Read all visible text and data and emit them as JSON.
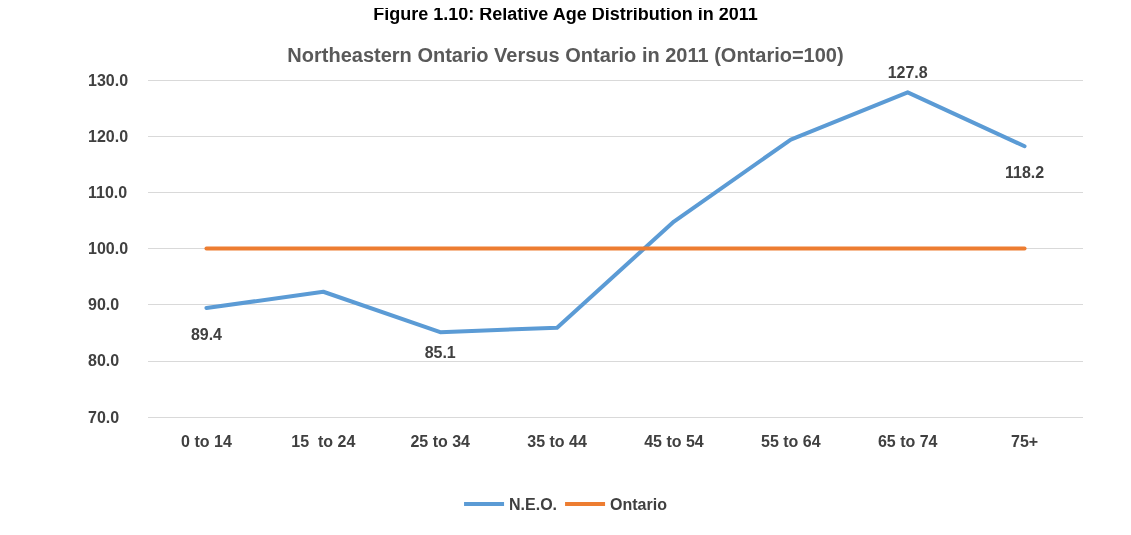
{
  "chart_data": {
    "type": "line",
    "title": "Figure 1.10: Relative Age Distribution in 2011",
    "subtitle": "Northeastern Ontario Versus Ontario in 2011 (Ontario=100)",
    "categories": [
      "0 to 14",
      "15  to 24",
      "25 to 34",
      "35 to 44",
      "45 to 54",
      "55 to 64",
      "65 to 74",
      "75+"
    ],
    "series": [
      {
        "name": "N.E.O.",
        "color": "#5b9bd5",
        "values": [
          89.4,
          92.3,
          85.1,
          85.9,
          104.8,
          119.4,
          127.8,
          118.2
        ],
        "value_labels": [
          "89.4",
          null,
          "85.1",
          null,
          null,
          null,
          "127.8",
          "118.2"
        ]
      },
      {
        "name": "Ontario",
        "color": "#ed7d31",
        "values": [
          100,
          100,
          100,
          100,
          100,
          100,
          100,
          100
        ]
      }
    ],
    "ylim": [
      70,
      130
    ],
    "yticks": [
      {
        "value": 70,
        "label": "70.0"
      },
      {
        "value": 80,
        "label": "80.0"
      },
      {
        "value": 90,
        "label": "90.0"
      },
      {
        "value": 100,
        "label": "100.0"
      },
      {
        "value": 110,
        "label": "110.0"
      },
      {
        "value": 120,
        "label": "120.0"
      },
      {
        "value": 130,
        "label": "130.0"
      }
    ],
    "grid": "y",
    "legend": "bottom",
    "marker": "none",
    "line_style": "solid"
  }
}
